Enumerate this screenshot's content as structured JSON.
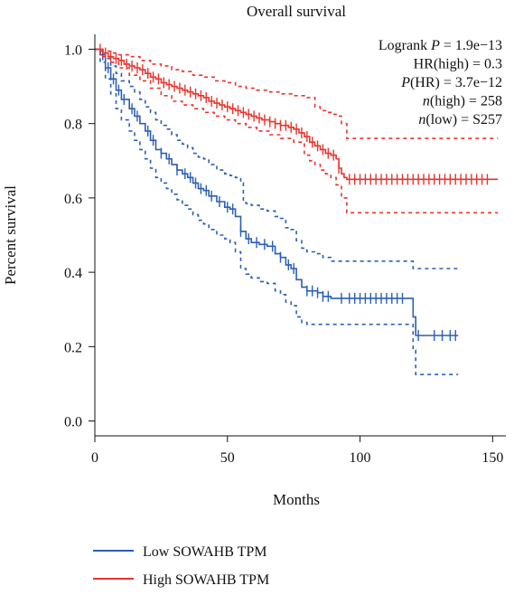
{
  "chart_data": {
    "type": "line",
    "chart_subtype": "kaplan-meier survival",
    "title": "Overall survival",
    "xlabel": "Months",
    "ylabel": "Percent survival",
    "xlim": [
      0,
      155
    ],
    "ylim": [
      -0.04,
      1.04
    ],
    "x_ticks": [
      0,
      50,
      100,
      150
    ],
    "y_ticks": [
      0.0,
      0.2,
      0.4,
      0.6,
      0.8,
      1.0
    ],
    "x_tick_labels": [
      "0",
      "50",
      "100",
      "150"
    ],
    "y_tick_labels": [
      "0.0",
      "0.2",
      "0.4",
      "0.6",
      "0.8",
      "1.0"
    ],
    "grid": false,
    "legend_position": "bottom-left, below plot",
    "annotation_position": "top-right",
    "stats": {
      "logrank": {
        "prefix": "Logrank ",
        "sym": "P",
        "suffix": " = 1.9e−13"
      },
      "hr": {
        "prefix": "HR(high) = 0.3",
        "sym": "",
        "suffix": ""
      },
      "phr": {
        "prefix": "",
        "sym": "P",
        "suffix": "(HR) = 3.7e−12"
      },
      "nhigh": {
        "prefix": "",
        "sym": "n",
        "suffix": "(high) = 258"
      },
      "nlow": {
        "prefix": "",
        "sym": "n",
        "suffix": "(low) = S257"
      }
    },
    "series": [
      {
        "name": "Low SOWAHB TPM",
        "color": "#2c5fb3",
        "survival": [
          [
            0,
            1.0
          ],
          [
            2,
            0.985
          ],
          [
            4,
            0.95
          ],
          [
            6,
            0.92
          ],
          [
            8,
            0.89
          ],
          [
            10,
            0.865
          ],
          [
            13,
            0.84
          ],
          [
            15,
            0.82
          ],
          [
            17,
            0.8
          ],
          [
            19,
            0.78
          ],
          [
            21,
            0.755
          ],
          [
            23,
            0.73
          ],
          [
            25,
            0.72
          ],
          [
            27,
            0.705
          ],
          [
            29,
            0.69
          ],
          [
            31,
            0.675
          ],
          [
            33,
            0.665
          ],
          [
            35,
            0.655
          ],
          [
            37,
            0.64
          ],
          [
            39,
            0.625
          ],
          [
            41,
            0.62
          ],
          [
            43,
            0.605
          ],
          [
            46,
            0.59
          ],
          [
            49,
            0.575
          ],
          [
            51,
            0.57
          ],
          [
            53,
            0.55
          ],
          [
            55,
            0.51
          ],
          [
            57,
            0.49
          ],
          [
            59,
            0.48
          ],
          [
            62,
            0.475
          ],
          [
            65,
            0.47
          ],
          [
            68,
            0.45
          ],
          [
            70,
            0.44
          ],
          [
            72,
            0.42
          ],
          [
            74,
            0.41
          ],
          [
            76,
            0.38
          ],
          [
            78,
            0.36
          ],
          [
            80,
            0.35
          ],
          [
            84,
            0.345
          ],
          [
            86,
            0.335
          ],
          [
            89,
            0.33
          ],
          [
            118,
            0.33
          ],
          [
            120,
            0.28
          ],
          [
            121,
            0.23
          ],
          [
            137,
            0.23
          ]
        ],
        "upper": [
          [
            0,
            1.0
          ],
          [
            2,
            0.995
          ],
          [
            4,
            0.975
          ],
          [
            6,
            0.955
          ],
          [
            8,
            0.935
          ],
          [
            10,
            0.915
          ],
          [
            13,
            0.9
          ],
          [
            15,
            0.885
          ],
          [
            17,
            0.865
          ],
          [
            19,
            0.845
          ],
          [
            21,
            0.83
          ],
          [
            23,
            0.81
          ],
          [
            25,
            0.795
          ],
          [
            27,
            0.785
          ],
          [
            29,
            0.77
          ],
          [
            31,
            0.755
          ],
          [
            33,
            0.745
          ],
          [
            35,
            0.735
          ],
          [
            37,
            0.72
          ],
          [
            39,
            0.71
          ],
          [
            41,
            0.705
          ],
          [
            43,
            0.69
          ],
          [
            46,
            0.675
          ],
          [
            49,
            0.665
          ],
          [
            51,
            0.66
          ],
          [
            53,
            0.655
          ],
          [
            55,
            0.64
          ],
          [
            56,
            0.59
          ],
          [
            57,
            0.585
          ],
          [
            59,
            0.58
          ],
          [
            62,
            0.57
          ],
          [
            65,
            0.565
          ],
          [
            68,
            0.55
          ],
          [
            70,
            0.545
          ],
          [
            72,
            0.52
          ],
          [
            74,
            0.515
          ],
          [
            76,
            0.485
          ],
          [
            78,
            0.465
          ],
          [
            80,
            0.455
          ],
          [
            84,
            0.45
          ],
          [
            86,
            0.44
          ],
          [
            89,
            0.43
          ],
          [
            118,
            0.43
          ],
          [
            120,
            0.41
          ],
          [
            137,
            0.41
          ]
        ],
        "lower": [
          [
            0,
            1.0
          ],
          [
            2,
            0.965
          ],
          [
            4,
            0.92
          ],
          [
            6,
            0.88
          ],
          [
            8,
            0.84
          ],
          [
            10,
            0.81
          ],
          [
            13,
            0.78
          ],
          [
            15,
            0.755
          ],
          [
            17,
            0.73
          ],
          [
            19,
            0.705
          ],
          [
            21,
            0.68
          ],
          [
            23,
            0.655
          ],
          [
            25,
            0.64
          ],
          [
            27,
            0.625
          ],
          [
            29,
            0.61
          ],
          [
            31,
            0.595
          ],
          [
            33,
            0.58
          ],
          [
            35,
            0.57
          ],
          [
            37,
            0.555
          ],
          [
            39,
            0.54
          ],
          [
            41,
            0.53
          ],
          [
            43,
            0.515
          ],
          [
            46,
            0.5
          ],
          [
            49,
            0.49
          ],
          [
            51,
            0.48
          ],
          [
            53,
            0.455
          ],
          [
            55,
            0.41
          ],
          [
            57,
            0.395
          ],
          [
            59,
            0.385
          ],
          [
            62,
            0.375
          ],
          [
            65,
            0.37
          ],
          [
            68,
            0.35
          ],
          [
            70,
            0.34
          ],
          [
            72,
            0.32
          ],
          [
            74,
            0.31
          ],
          [
            76,
            0.28
          ],
          [
            78,
            0.265
          ],
          [
            80,
            0.26
          ],
          [
            118,
            0.26
          ],
          [
            120,
            0.19
          ],
          [
            121,
            0.125
          ],
          [
            137,
            0.125
          ]
        ],
        "censor_x": [
          3,
          5,
          7,
          9,
          11,
          14,
          16,
          20,
          22,
          25,
          28,
          31,
          34,
          36,
          38,
          40,
          42,
          44,
          47,
          50,
          52,
          55,
          58,
          61,
          64,
          67,
          70,
          73,
          75,
          80,
          82,
          84,
          86,
          88,
          93,
          96,
          98,
          100,
          102,
          104,
          106,
          108,
          110,
          112,
          114,
          116,
          122,
          128,
          131,
          134,
          136
        ]
      },
      {
        "name": "High SOWAHB TPM",
        "color": "#e8342e",
        "survival": [
          [
            0,
            1.0
          ],
          [
            3,
            0.99
          ],
          [
            5,
            0.98
          ],
          [
            7,
            0.975
          ],
          [
            9,
            0.97
          ],
          [
            11,
            0.96
          ],
          [
            13,
            0.955
          ],
          [
            15,
            0.95
          ],
          [
            17,
            0.945
          ],
          [
            19,
            0.935
          ],
          [
            21,
            0.925
          ],
          [
            23,
            0.92
          ],
          [
            25,
            0.91
          ],
          [
            27,
            0.905
          ],
          [
            29,
            0.9
          ],
          [
            31,
            0.895
          ],
          [
            33,
            0.89
          ],
          [
            35,
            0.885
          ],
          [
            37,
            0.88
          ],
          [
            39,
            0.875
          ],
          [
            41,
            0.87
          ],
          [
            43,
            0.86
          ],
          [
            45,
            0.855
          ],
          [
            47,
            0.85
          ],
          [
            49,
            0.845
          ],
          [
            51,
            0.84
          ],
          [
            53,
            0.835
          ],
          [
            55,
            0.83
          ],
          [
            57,
            0.825
          ],
          [
            59,
            0.82
          ],
          [
            61,
            0.815
          ],
          [
            63,
            0.81
          ],
          [
            66,
            0.805
          ],
          [
            68,
            0.8
          ],
          [
            70,
            0.795
          ],
          [
            73,
            0.79
          ],
          [
            75,
            0.785
          ],
          [
            77,
            0.775
          ],
          [
            79,
            0.765
          ],
          [
            81,
            0.75
          ],
          [
            83,
            0.74
          ],
          [
            85,
            0.73
          ],
          [
            87,
            0.72
          ],
          [
            89,
            0.715
          ],
          [
            91,
            0.705
          ],
          [
            92,
            0.68
          ],
          [
            93,
            0.665
          ],
          [
            94,
            0.655
          ],
          [
            95,
            0.65
          ],
          [
            152,
            0.65
          ]
        ],
        "upper": [
          [
            0,
            1.0
          ],
          [
            3,
            0.995
          ],
          [
            6,
            0.99
          ],
          [
            9,
            0.985
          ],
          [
            13,
            0.98
          ],
          [
            17,
            0.97
          ],
          [
            21,
            0.96
          ],
          [
            25,
            0.955
          ],
          [
            29,
            0.945
          ],
          [
            33,
            0.94
          ],
          [
            37,
            0.93
          ],
          [
            41,
            0.925
          ],
          [
            45,
            0.915
          ],
          [
            49,
            0.91
          ],
          [
            53,
            0.9
          ],
          [
            57,
            0.895
          ],
          [
            61,
            0.89
          ],
          [
            66,
            0.885
          ],
          [
            70,
            0.88
          ],
          [
            75,
            0.875
          ],
          [
            79,
            0.87
          ],
          [
            83,
            0.845
          ],
          [
            85,
            0.835
          ],
          [
            87,
            0.83
          ],
          [
            89,
            0.825
          ],
          [
            91,
            0.82
          ],
          [
            93,
            0.8
          ],
          [
            95,
            0.76
          ],
          [
            152,
            0.76
          ]
        ],
        "lower": [
          [
            0,
            1.0
          ],
          [
            3,
            0.98
          ],
          [
            6,
            0.965
          ],
          [
            9,
            0.95
          ],
          [
            13,
            0.93
          ],
          [
            17,
            0.915
          ],
          [
            21,
            0.895
          ],
          [
            25,
            0.875
          ],
          [
            29,
            0.86
          ],
          [
            33,
            0.85
          ],
          [
            37,
            0.84
          ],
          [
            41,
            0.83
          ],
          [
            45,
            0.82
          ],
          [
            49,
            0.81
          ],
          [
            53,
            0.8
          ],
          [
            57,
            0.79
          ],
          [
            61,
            0.78
          ],
          [
            66,
            0.77
          ],
          [
            70,
            0.76
          ],
          [
            75,
            0.75
          ],
          [
            79,
            0.715
          ],
          [
            81,
            0.7
          ],
          [
            83,
            0.69
          ],
          [
            85,
            0.675
          ],
          [
            87,
            0.665
          ],
          [
            89,
            0.655
          ],
          [
            91,
            0.635
          ],
          [
            93,
            0.6
          ],
          [
            95,
            0.56
          ],
          [
            152,
            0.56
          ]
        ],
        "censor_x": [
          2,
          4,
          6,
          8,
          10,
          12,
          14,
          16,
          18,
          20,
          22,
          24,
          26,
          28,
          30,
          32,
          34,
          36,
          38,
          40,
          42,
          44,
          46,
          48,
          50,
          52,
          54,
          56,
          58,
          60,
          62,
          64,
          66,
          68,
          70,
          72,
          74,
          76,
          78,
          80,
          82,
          84,
          86,
          88,
          90,
          92,
          96,
          98,
          100,
          102,
          104,
          106,
          108,
          110,
          112,
          114,
          116,
          118,
          120,
          122,
          124,
          126,
          128,
          130,
          132,
          134,
          136,
          138,
          140,
          142,
          144,
          146,
          148
        ]
      }
    ]
  }
}
